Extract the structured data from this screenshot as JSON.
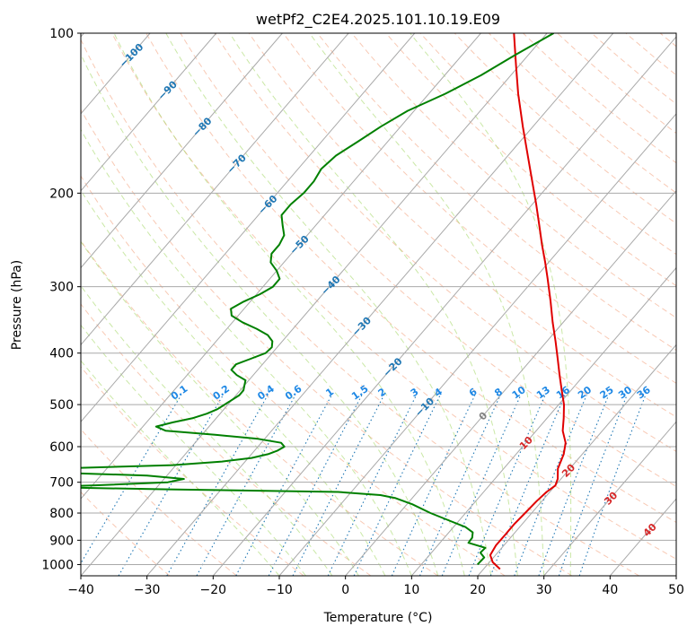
{
  "chart_data": {
    "type": "line",
    "title": "wetPf2_C2E4.2025.101.10.19.E09",
    "xlabel": "Temperature (°C)",
    "ylabel": "Pressure (hPa)",
    "xlim": [
      -40,
      50
    ],
    "ylim": [
      1050,
      100
    ],
    "y_scale": "log",
    "grid": true,
    "x_ticks": [
      "−40",
      "−30",
      "−20",
      "−10",
      "0",
      "10",
      "20",
      "30",
      "40",
      "50"
    ],
    "y_ticks": [
      "100",
      "200",
      "300",
      "400",
      "500",
      "600",
      "700",
      "800",
      "900",
      "1000"
    ],
    "colors": {
      "temperature": "#e00000",
      "dewpoint": "#008000",
      "isotherm": "#a9a9a9",
      "dry_adiabat": "#f4a582",
      "moist_adiabat": "#a6d96a",
      "mixing_ratio": "#1f77b4",
      "isotherm_label": "#1f77b4",
      "warm_label": "#d62728",
      "zero_label": "#808080"
    },
    "series": [
      {
        "key": "temperature",
        "p": [
          1020,
          990,
          960,
          920,
          880,
          840,
          800,
          760,
          730,
          710,
          690,
          660,
          620,
          590,
          560,
          530,
          500,
          470,
          440,
          410,
          380,
          350,
          320,
          290,
          270,
          250,
          230,
          210,
          190,
          170,
          150,
          130,
          115,
          100
        ],
        "t": [
          22.5,
          20.5,
          19.2,
          18.8,
          18.8,
          18.8,
          19.0,
          19.2,
          19.5,
          20.0,
          19.5,
          18.2,
          17.2,
          16.0,
          14.0,
          12.5,
          10.8,
          8.6,
          6.3,
          3.9,
          1.3,
          -1.6,
          -4.6,
          -8.0,
          -10.5,
          -13.3,
          -16.2,
          -19.4,
          -23.0,
          -27.0,
          -31.5,
          -36.5,
          -40.5,
          -45.0
        ]
      },
      {
        "key": "dewpoint",
        "p": [
          1000,
          970,
          950,
          930,
          910,
          890,
          870,
          850,
          830,
          800,
          770,
          750,
          740,
          730,
          722,
          715,
          710,
          700,
          690,
          680,
          670,
          660,
          650,
          640,
          630,
          620,
          610,
          600,
          590,
          580,
          570,
          560,
          550,
          540,
          530,
          520,
          510,
          500,
          490,
          480,
          470,
          460,
          450,
          440,
          430,
          420,
          410,
          400,
          390,
          380,
          370,
          360,
          350,
          340,
          330,
          320,
          310,
          300,
          290,
          280,
          270,
          260,
          250,
          240,
          230,
          220,
          210,
          200,
          190,
          180,
          170,
          160,
          150,
          140,
          130,
          120,
          110,
          100
        ],
        "t": [
          18.5,
          18.6,
          17.4,
          17.5,
          14.3,
          14.2,
          13.6,
          11.8,
          9.0,
          4.7,
          0.8,
          -2.5,
          -5.2,
          -12.0,
          -38.0,
          -58.0,
          -50.0,
          -39.0,
          -37.0,
          -43.0,
          -60.0,
          -58.0,
          -40.5,
          -33.5,
          -29.5,
          -27.5,
          -26.5,
          -26.0,
          -27.0,
          -31.0,
          -38.0,
          -46.0,
          -48.0,
          -46.0,
          -43.5,
          -42.0,
          -41.0,
          -40.5,
          -40.0,
          -39.5,
          -39.5,
          -40.0,
          -40.5,
          -42.5,
          -44.0,
          -44.0,
          -42.5,
          -41.0,
          -40.8,
          -41.5,
          -43.0,
          -45.5,
          -48.5,
          -51.0,
          -52.0,
          -51.0,
          -49.5,
          -48.5,
          -48.5,
          -50.0,
          -52.0,
          -53.0,
          -53.0,
          -53.5,
          -55.0,
          -56.5,
          -56.5,
          -56.0,
          -56.0,
          -56.5,
          -56.0,
          -54.5,
          -53.0,
          -51.0,
          -47.5,
          -44.5,
          -42.0,
          -39.0
        ]
      }
    ],
    "isotherm_labels": [
      "−100",
      "−90",
      "−80",
      "−70",
      "−60",
      "−50",
      "−40",
      "−30",
      "−20",
      "−10",
      "0",
      "10",
      "20",
      "30",
      "40"
    ],
    "mixing_ratio_labels": [
      "0.1",
      "0.2",
      "0.4",
      "0.6",
      "1",
      "1.5",
      "2",
      "3",
      "4",
      "6",
      "8",
      "10",
      "13",
      "16",
      "20",
      "25",
      "30",
      "36"
    ]
  }
}
